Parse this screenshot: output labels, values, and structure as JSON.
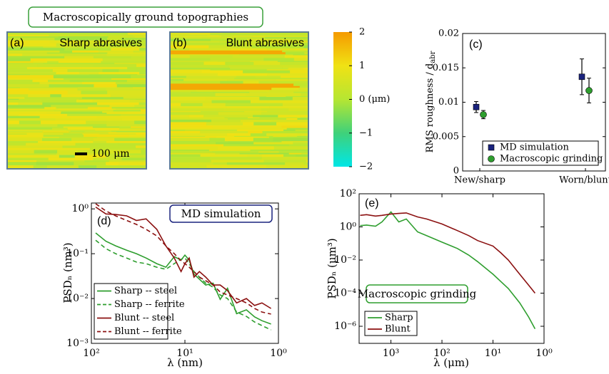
{
  "header": {
    "title": "Macroscopically ground topographies"
  },
  "chart_data": [
    {
      "type": "image",
      "panel": "(a)",
      "title": "Sharp abrasives",
      "scale_bar": "100 μm"
    },
    {
      "type": "image",
      "panel": "(b)",
      "title": "Blunt abrasives"
    },
    {
      "type": "colorbar",
      "ylim": [
        -2,
        2
      ],
      "yticks": [
        2,
        1,
        {
          "value": 0,
          "label": "0 (μm)"
        },
        {
          "value": -1,
          "label": "−1"
        },
        {
          "value": -2,
          "label": "−2"
        }
      ],
      "colors": [
        "#00e6e6",
        "#3fd17a",
        "#b6e632",
        "#f0e214",
        "#f59a00"
      ]
    },
    {
      "type": "errorbar",
      "panel": "(c)",
      "ylabel": "RMS roughness / d",
      "ylabel_sub": "abr",
      "categories": [
        "New/sharp",
        "Worn/blunt"
      ],
      "ylim": [
        0,
        0.02
      ],
      "yticks": [
        0,
        0.005,
        0.01,
        0.015,
        0.02
      ],
      "legend": "lower right",
      "series": [
        {
          "name": "MD simulation",
          "color": "#1a237e",
          "marker": "square",
          "values": [
            0.0093,
            0.0137
          ],
          "errors": [
            0.0008,
            0.0026
          ]
        },
        {
          "name": "Macroscopic grinding",
          "color": "#2e9e2e",
          "marker": "circle",
          "values": [
            0.0082,
            0.0117
          ],
          "errors": [
            0.0006,
            0.0018
          ]
        }
      ]
    },
    {
      "type": "line",
      "panel": "(d)",
      "note": "MD simulation",
      "note_color": "#1a237e",
      "xlabel": "λ (nm)",
      "ylabel": "PSDₙ (nm³)",
      "xlog": true,
      "ylog": true,
      "legend": "lower left",
      "xlim": [
        100,
        1
      ],
      "xticks": [
        {
          "value": 100,
          "label": "10²"
        },
        {
          "value": 10,
          "label": "10¹"
        },
        {
          "value": 1,
          "label": "10⁰"
        }
      ],
      "ylim": [
        0.001,
        1.35
      ],
      "yticks": [
        {
          "value": 0.001,
          "label": "10⁻³"
        },
        {
          "value": 0.01,
          "label": "10⁻²"
        },
        {
          "value": 0.1,
          "label": "10⁻¹"
        },
        {
          "value": 1,
          "label": "10⁰"
        }
      ],
      "x": [
        90,
        70,
        55,
        42,
        33,
        26,
        20,
        16,
        13,
        11,
        10,
        9,
        8,
        7,
        6,
        5,
        4.2,
        3.5,
        2.8,
        2.2,
        1.8,
        1.5,
        1.2
      ],
      "series": [
        {
          "name": "Sharp -- steel",
          "color": "#2e9e2e",
          "dash": false,
          "values": [
            0.29,
            0.19,
            0.15,
            0.12,
            0.1,
            0.08,
            0.06,
            0.05,
            0.086,
            0.072,
            0.093,
            0.072,
            0.035,
            0.027,
            0.02,
            0.022,
            0.0096,
            0.017,
            0.0046,
            0.0056,
            0.0039,
            0.0032,
            0.0027
          ]
        },
        {
          "name": "Sharp -- ferrite",
          "color": "#2e9e2e",
          "dash": true,
          "values": [
            0.2,
            0.13,
            0.1,
            0.08,
            0.065,
            0.06,
            0.05,
            0.045,
            0.06,
            0.075,
            0.08,
            0.06,
            0.04,
            0.03,
            0.022,
            0.018,
            0.012,
            0.01,
            0.005,
            0.004,
            0.003,
            0.0025,
            0.002
          ]
        },
        {
          "name": "Blunt -- steel",
          "color": "#8b1010",
          "dash": false,
          "values": [
            1.1,
            0.77,
            0.75,
            0.7,
            0.55,
            0.6,
            0.35,
            0.15,
            0.08,
            0.04,
            0.06,
            0.08,
            0.03,
            0.04,
            0.03,
            0.02,
            0.02,
            0.015,
            0.008,
            0.01,
            0.007,
            0.008,
            0.006
          ]
        },
        {
          "name": "Blunt -- ferrite",
          "color": "#8b1010",
          "dash": true,
          "values": [
            1.3,
            0.9,
            0.7,
            0.55,
            0.45,
            0.35,
            0.25,
            0.15,
            0.1,
            0.07,
            0.06,
            0.05,
            0.04,
            0.03,
            0.025,
            0.02,
            0.014,
            0.012,
            0.01,
            0.008,
            0.006,
            0.005,
            0.0045
          ]
        }
      ]
    },
    {
      "type": "line",
      "panel": "(e)",
      "note": "Macroscopic grinding",
      "note_color": "#2e9e2e",
      "xlabel": "λ (μm)",
      "ylabel": "PSDₙ (μm³)",
      "xlog": true,
      "ylog": true,
      "legend": "lower left",
      "xlim": [
        4200,
        1
      ],
      "xticks": [
        {
          "value": 1000,
          "label": "10³"
        },
        {
          "value": 100,
          "label": "10²"
        },
        {
          "value": 10,
          "label": "10¹"
        },
        {
          "value": 1,
          "label": "10⁰"
        }
      ],
      "ylim": [
        9.3e-08,
        100
      ],
      "yticks": [
        {
          "value": 100,
          "label": "10²"
        },
        {
          "value": 1,
          "label": "10⁰"
        },
        {
          "value": 0.01,
          "label": "10⁻²"
        },
        {
          "value": 0.0001,
          "label": "10⁻⁴"
        },
        {
          "value": 1e-06,
          "label": "10⁻⁶"
        }
      ],
      "x": [
        4000,
        3000,
        2000,
        1500,
        1000,
        700,
        500,
        300,
        200,
        100,
        50,
        30,
        20,
        10,
        7,
        5,
        3,
        2,
        1.5
      ],
      "series": [
        {
          "name": "Sharp",
          "color": "#2e9e2e",
          "dash": false,
          "values": [
            1.2,
            1.3,
            1.1,
            2,
            8,
            2,
            3,
            0.5,
            0.3,
            0.12,
            0.05,
            0.02,
            0.008,
            0.0014,
            0.0005,
            0.00019,
            2.6e-05,
            3.6e-06,
            7e-07
          ]
        },
        {
          "name": "Blunt",
          "color": "#8b1010",
          "dash": false,
          "values": [
            5,
            5.5,
            4.5,
            5,
            6,
            6.5,
            7,
            4,
            3,
            1.5,
            0.6,
            0.3,
            0.15,
            0.07,
            0.027,
            0.01,
            0.0014,
            0.0003,
            0.0001
          ]
        }
      ]
    }
  ]
}
